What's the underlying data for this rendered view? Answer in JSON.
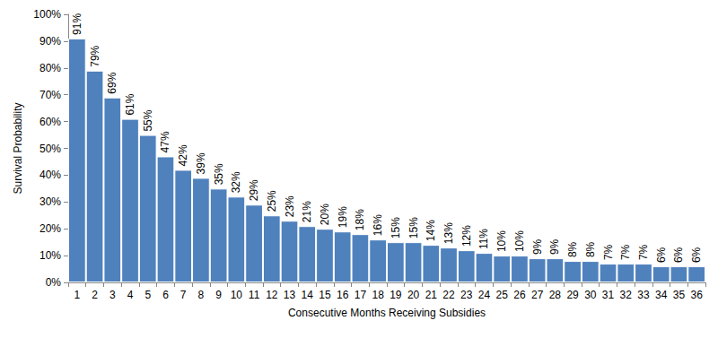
{
  "chart_data": {
    "type": "bar",
    "x_label": "Consecutive Months Receiving Subsidies",
    "y_label": "Survival Probability",
    "categories": [
      "1",
      "2",
      "3",
      "4",
      "5",
      "6",
      "7",
      "8",
      "9",
      "10",
      "11",
      "12",
      "13",
      "14",
      "15",
      "16",
      "17",
      "18",
      "19",
      "20",
      "21",
      "22",
      "23",
      "24",
      "25",
      "26",
      "27",
      "28",
      "29",
      "30",
      "31",
      "32",
      "33",
      "34",
      "35",
      "36"
    ],
    "values": [
      91,
      79,
      69,
      61,
      55,
      47,
      42,
      39,
      35,
      32,
      29,
      25,
      23,
      21,
      20,
      19,
      18,
      16,
      15,
      15,
      14,
      13,
      12,
      11,
      10,
      10,
      9,
      9,
      8,
      8,
      7,
      7,
      7,
      6,
      6,
      6
    ],
    "value_labels": [
      "91%",
      "79%",
      "69%",
      "61%",
      "55%",
      "47%",
      "42%",
      "39%",
      "35%",
      "32%",
      "29%",
      "25%",
      "23%",
      "21%",
      "20%",
      "19%",
      "18%",
      "16%",
      "15%",
      "15%",
      "14%",
      "13%",
      "12%",
      "11%",
      "10%",
      "10%",
      "9%",
      "9%",
      "8%",
      "8%",
      "7%",
      "7%",
      "7%",
      "6%",
      "6%",
      "6%"
    ],
    "color": "#4f81bd",
    "ylim": [
      0,
      100
    ],
    "yticks": [
      {
        "value": 0,
        "label": "0%"
      },
      {
        "value": 10,
        "label": "10%"
      },
      {
        "value": 20,
        "label": "20%"
      },
      {
        "value": 30,
        "label": "30%"
      },
      {
        "value": 40,
        "label": "40%"
      },
      {
        "value": 50,
        "label": "50%"
      },
      {
        "value": 60,
        "label": "60%"
      },
      {
        "value": 70,
        "label": "70%"
      },
      {
        "value": 80,
        "label": "80%"
      },
      {
        "value": 90,
        "label": "90%"
      },
      {
        "value": 100,
        "label": "100%"
      }
    ],
    "grid": false,
    "data_labels": true
  }
}
